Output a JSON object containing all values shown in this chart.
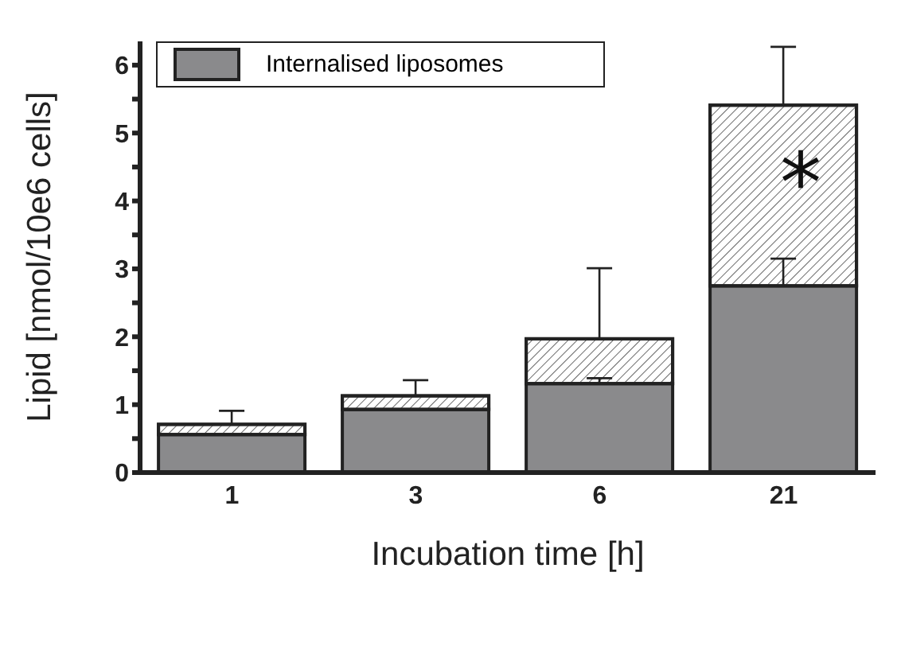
{
  "chart_data": {
    "type": "bar",
    "stacked": true,
    "xlabel": "Incubation time [h]",
    "ylabel": "Lipid [nmol/10e6 cells]",
    "categories": [
      "1",
      "3",
      "6",
      "21"
    ],
    "series": [
      {
        "name": "Internalised liposomes",
        "color": "#8a8a8c",
        "values": [
          0.56,
          0.93,
          1.31,
          2.75
        ],
        "errors": [
          null,
          null,
          [
            1.31,
            1.39
          ],
          [
            2.75,
            3.15
          ]
        ]
      },
      {
        "color": "#ffffff",
        "values": [
          0.15,
          0.2,
          0.66,
          2.66
        ],
        "errors": [
          [
            0.71,
            0.91
          ],
          [
            1.13,
            1.36
          ],
          [
            1.97,
            3.01
          ],
          [
            5.41,
            6.27
          ]
        ]
      }
    ],
    "ylim": [
      0,
      6.35
    ],
    "yticks": [
      0,
      {
        "value": 0.5,
        "label": null
      },
      1,
      {
        "value": 1.5,
        "label": null
      },
      2,
      {
        "value": 2.5,
        "label": null
      },
      3,
      {
        "value": 3.5,
        "label": null
      },
      4,
      {
        "value": 4.5,
        "label": null
      },
      5,
      {
        "value": 5.5,
        "label": null
      },
      6
    ],
    "annotations": [
      "*"
    ],
    "legend": "top left"
  }
}
